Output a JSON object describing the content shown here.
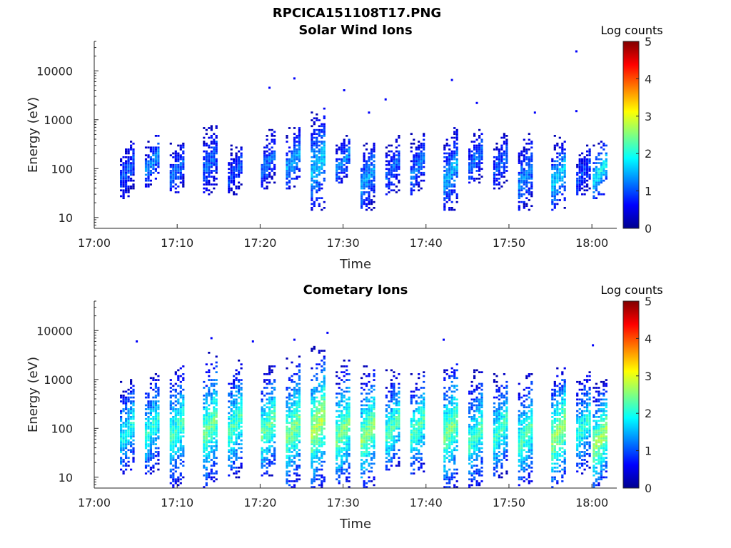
{
  "figure": {
    "title": "RPCICA151108T17.PNG"
  },
  "colormap": {
    "name": "jet",
    "stops": [
      "#00008f",
      "#0000ff",
      "#0080ff",
      "#00ffff",
      "#80ff80",
      "#ffff00",
      "#ff8000",
      "#ff0000",
      "#800000"
    ]
  },
  "chart_data": [
    {
      "type": "heatmap",
      "name": "solar-wind-ions",
      "title": "Solar Wind Ions",
      "xlabel": "Time",
      "ylabel": "Energy (eV)",
      "xlim": [
        "17:00",
        "18:03"
      ],
      "ylim": [
        6,
        40000
      ],
      "yscale": "log",
      "xticks": [
        "17:00",
        "17:10",
        "17:20",
        "17:30",
        "17:40",
        "17:50",
        "18:00"
      ],
      "yticks": [
        "10",
        "100",
        "1000",
        "10000"
      ],
      "colorbar": {
        "label": "Log counts",
        "min": 0,
        "max": 5,
        "ticks": [
          "0",
          "1",
          "2",
          "3",
          "4",
          "5"
        ]
      },
      "sweeps": [
        {
          "time": "17:04",
          "emin": 25,
          "emax": 450,
          "peak": 1.0
        },
        {
          "time": "17:07",
          "emin": 45,
          "emax": 450,
          "peak": 1.4
        },
        {
          "time": "17:10",
          "emin": 30,
          "emax": 350,
          "peak": 1.2
        },
        {
          "time": "17:14",
          "emin": 30,
          "emax": 900,
          "peak": 1.1
        },
        {
          "time": "17:17",
          "emin": 30,
          "emax": 300,
          "peak": 1.0
        },
        {
          "time": "17:21",
          "emin": 40,
          "emax": 600,
          "peak": 1.2
        },
        {
          "time": "17:24",
          "emin": 40,
          "emax": 700,
          "peak": 1.5
        },
        {
          "time": "17:27",
          "emin": 14,
          "emax": 2000,
          "peak": 1.6
        },
        {
          "time": "17:30",
          "emin": 50,
          "emax": 500,
          "peak": 1.3
        },
        {
          "time": "17:33",
          "emin": 14,
          "emax": 400,
          "peak": 1.4
        },
        {
          "time": "17:36",
          "emin": 30,
          "emax": 450,
          "peak": 1.1
        },
        {
          "time": "17:39",
          "emin": 30,
          "emax": 500,
          "peak": 1.2
        },
        {
          "time": "17:43",
          "emin": 14,
          "emax": 700,
          "peak": 1.5
        },
        {
          "time": "17:46",
          "emin": 50,
          "emax": 600,
          "peak": 1.2
        },
        {
          "time": "17:49",
          "emin": 40,
          "emax": 500,
          "peak": 1.1
        },
        {
          "time": "17:52",
          "emin": 14,
          "emax": 500,
          "peak": 1.3
        },
        {
          "time": "17:56",
          "emin": 14,
          "emax": 450,
          "peak": 1.7
        },
        {
          "time": "17:59",
          "emin": 30,
          "emax": 300,
          "peak": 1.0
        },
        {
          "time": "18:01",
          "emin": 25,
          "emax": 400,
          "peak": 1.9
        }
      ],
      "outliers": [
        {
          "time": "17:21",
          "energy": 4500
        },
        {
          "time": "17:24",
          "energy": 7000
        },
        {
          "time": "17:30",
          "energy": 4000
        },
        {
          "time": "17:33",
          "energy": 1400
        },
        {
          "time": "17:35",
          "energy": 2600
        },
        {
          "time": "17:43",
          "energy": 6500
        },
        {
          "time": "17:46",
          "energy": 2200
        },
        {
          "time": "17:53",
          "energy": 1400
        },
        {
          "time": "17:58",
          "energy": 25000
        },
        {
          "time": "17:58",
          "energy": 1500
        }
      ]
    },
    {
      "type": "heatmap",
      "name": "cometary-ions",
      "title": "Cometary Ions",
      "xlabel": "Time",
      "ylabel": "Energy (eV)",
      "xlim": [
        "17:00",
        "18:03"
      ],
      "ylim": [
        6,
        40000
      ],
      "yscale": "log",
      "xticks": [
        "17:00",
        "17:10",
        "17:20",
        "17:30",
        "17:40",
        "17:50",
        "18:00"
      ],
      "yticks": [
        "10",
        "100",
        "1000",
        "10000"
      ],
      "colorbar": {
        "label": "Log counts",
        "min": 0,
        "max": 5,
        "ticks": [
          "0",
          "1",
          "2",
          "3",
          "4",
          "5"
        ]
      },
      "sweeps": [
        {
          "time": "17:04",
          "emin": 12,
          "emax": 1000,
          "peak": 2.0
        },
        {
          "time": "17:07",
          "emin": 12,
          "emax": 1500,
          "peak": 2.1
        },
        {
          "time": "17:10",
          "emin": 6,
          "emax": 2500,
          "peak": 2.2
        },
        {
          "time": "17:14",
          "emin": 6,
          "emax": 4000,
          "peak": 2.4
        },
        {
          "time": "17:17",
          "emin": 10,
          "emax": 2500,
          "peak": 2.3
        },
        {
          "time": "17:21",
          "emin": 10,
          "emax": 2000,
          "peak": 2.4
        },
        {
          "time": "17:24",
          "emin": 6,
          "emax": 3000,
          "peak": 2.5
        },
        {
          "time": "17:27",
          "emin": 6,
          "emax": 5000,
          "peak": 2.8
        },
        {
          "time": "17:30",
          "emin": 6,
          "emax": 2500,
          "peak": 2.5
        },
        {
          "time": "17:33",
          "emin": 6,
          "emax": 2000,
          "peak": 2.6
        },
        {
          "time": "17:36",
          "emin": 12,
          "emax": 1500,
          "peak": 2.3
        },
        {
          "time": "17:39",
          "emin": 12,
          "emax": 1500,
          "peak": 2.3
        },
        {
          "time": "17:43",
          "emin": 6,
          "emax": 3000,
          "peak": 2.5
        },
        {
          "time": "17:46",
          "emin": 6,
          "emax": 1500,
          "peak": 2.2
        },
        {
          "time": "17:49",
          "emin": 10,
          "emax": 1500,
          "peak": 2.2
        },
        {
          "time": "17:52",
          "emin": 6,
          "emax": 1500,
          "peak": 2.3
        },
        {
          "time": "17:56",
          "emin": 6,
          "emax": 2000,
          "peak": 2.7
        },
        {
          "time": "17:59",
          "emin": 12,
          "emax": 1500,
          "peak": 2.1
        },
        {
          "time": "18:01",
          "emin": 6,
          "emax": 1000,
          "peak": 2.7
        }
      ],
      "outliers": [
        {
          "time": "17:05",
          "energy": 6000
        },
        {
          "time": "17:14",
          "energy": 7000
        },
        {
          "time": "17:19",
          "energy": 6000
        },
        {
          "time": "17:24",
          "energy": 6500
        },
        {
          "time": "17:28",
          "energy": 9000
        },
        {
          "time": "17:42",
          "energy": 6500
        },
        {
          "time": "18:00",
          "energy": 5000
        }
      ]
    }
  ]
}
